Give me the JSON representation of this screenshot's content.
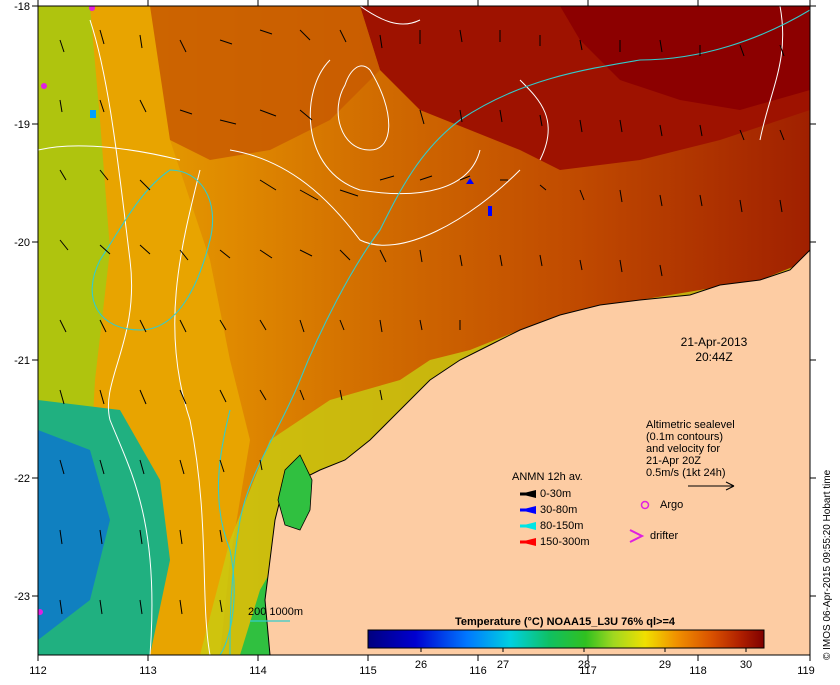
{
  "date_label": "21-Apr-2013",
  "time_label": "20:44Z",
  "altimetry_note": {
    "line1": "Altimetric sealevel",
    "line2": "(0.1m contours)",
    "line3": "and velocity for",
    "line4": "21-Apr 20Z",
    "line5": "0.5m/s (1kt 24h)"
  },
  "anmn_legend": {
    "title": "ANMN 12h av.",
    "items": [
      {
        "label": "0-30m",
        "color": "#000000"
      },
      {
        "label": "30-80m",
        "color": "#0000ff"
      },
      {
        "label": "80-150m",
        "color": "#00e5e5"
      },
      {
        "label": "150-300m",
        "color": "#ff0000"
      }
    ]
  },
  "argo_label": "Argo",
  "drifter_label": "drifter",
  "isobath_label": "200  1000m",
  "colorbar": {
    "title": "Temperature (°C) NOAA15_L3U 76% ql>=4",
    "ticks": [
      "26",
      "27",
      "28",
      "29",
      "30"
    ]
  },
  "axes": {
    "lon_ticks": [
      "112",
      "113",
      "114",
      "115",
      "116",
      "117",
      "118",
      "119"
    ],
    "lat_ticks": [
      "-18",
      "-19",
      "-20",
      "-21",
      "-22",
      "-23"
    ]
  },
  "credit": "© IMOS 06-Apr-2015 09:55:20 Hobart time",
  "colors": {
    "land": "#fdcca3",
    "warm": "#a81c00",
    "hot": "#8c0000",
    "isobath": "#33cccc",
    "argo": "#e020e0"
  }
}
